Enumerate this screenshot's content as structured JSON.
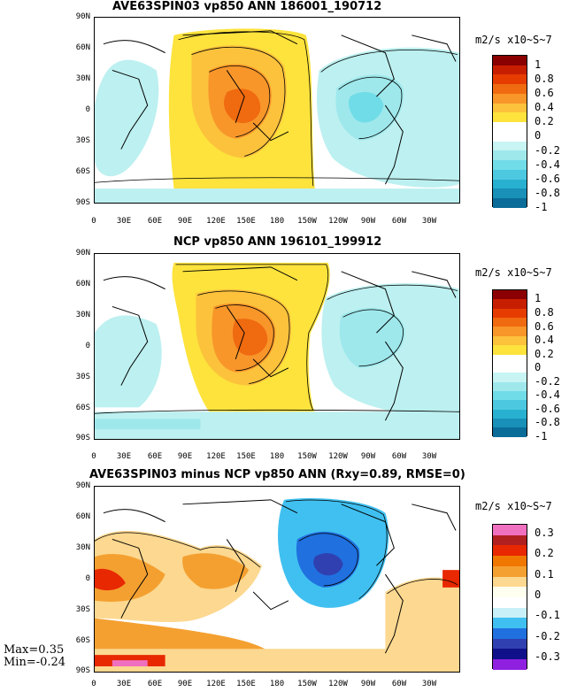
{
  "panels": [
    {
      "title": "AVE63SPIN03 vp850 ANN 186001_190712",
      "units": "m2/s x10~S~7",
      "colorbar": {
        "labels": [
          "1",
          "0.8",
          "0.6",
          "0.4",
          "0.2",
          "0",
          "-0.2",
          "-0.4",
          "-0.6",
          "-0.8",
          "-1"
        ],
        "colors": [
          "#8b0000",
          "#c81e00",
          "#e63c00",
          "#f06a10",
          "#f8962a",
          "#fcc23c",
          "#fde33c",
          "#ffffff",
          "#ffffff",
          "#c8f4f4",
          "#9ee8ec",
          "#70dce8",
          "#4cc8e0",
          "#28b0d0",
          "#1890b8",
          "#0a6c98"
        ]
      },
      "contour_labels": [
        "-.2",
        "-.2",
        "-.2",
        "0",
        "0",
        "0",
        "-.2",
        ".2",
        ".2",
        ".4",
        ".2"
      ]
    },
    {
      "title": "NCP vp850 ANN 196101_199912",
      "units": "m2/s x10~S~7",
      "colorbar": {
        "labels": [
          "1",
          "0.8",
          "0.6",
          "0.4",
          "0.2",
          "0",
          "-0.2",
          "-0.4",
          "-0.6",
          "-0.8",
          "-1"
        ],
        "colors": [
          "#8b0000",
          "#c81e00",
          "#e63c00",
          "#f06a10",
          "#f8962a",
          "#fcc23c",
          "#fde33c",
          "#ffffff",
          "#ffffff",
          "#c8f4f4",
          "#9ee8ec",
          "#70dce8",
          "#4cc8e0",
          "#28b0d0",
          "#1890b8",
          "#0a6c98"
        ]
      },
      "contour_labels": [
        "0",
        "-.2",
        "-.2",
        ".2",
        ".2",
        ".4",
        "-.2",
        "0",
        "-.2",
        "-.4"
      ]
    },
    {
      "title": "AVE63SPIN03 minus NCP vp850 ANN (Rxy=0.89, RMSE=0)",
      "units": "m2/s x10~S~7",
      "colorbar": {
        "labels": [
          "0.3",
          "0.2",
          "0.1",
          "0",
          "-0.1",
          "-0.2",
          "-0.3"
        ],
        "colors": [
          "#f070c0",
          "#b02020",
          "#e82800",
          "#f07800",
          "#f4a030",
          "#fcd890",
          "#fffff0",
          "#ffffff",
          "#c8f0f8",
          "#40c0f0",
          "#2070e0",
          "#3040b0",
          "#10108a",
          "#9020e0"
        ]
      },
      "contour_labels": [
        ".1",
        ".1",
        "0",
        "-.1",
        "-.1",
        "-.1",
        "0",
        "-.1"
      ]
    }
  ],
  "axes": {
    "y_ticks": [
      "90N",
      "60N",
      "30N",
      "0",
      "30S",
      "60S",
      "90S"
    ],
    "x_ticks": [
      "0",
      "30E",
      "60E",
      "90E",
      "120E",
      "150E",
      "180",
      "150W",
      "120W",
      "90W",
      "60W",
      "30W"
    ]
  },
  "stats": {
    "max": "Max=0.35",
    "min": "Min=-0.24"
  }
}
